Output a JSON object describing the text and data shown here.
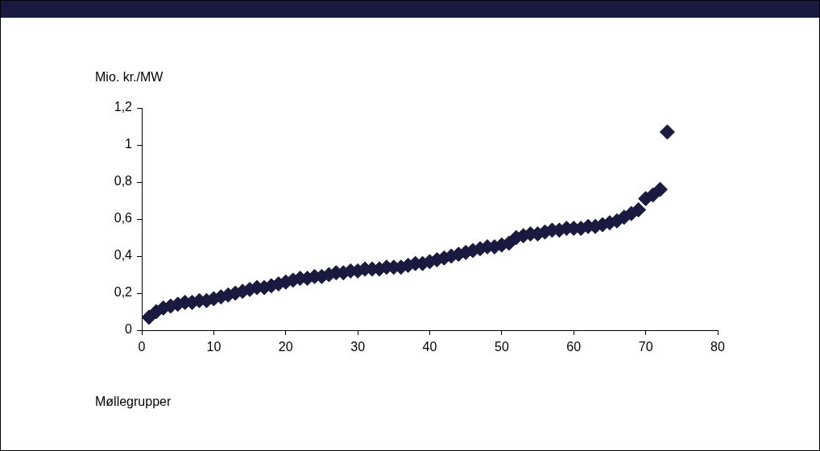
{
  "chart_data": {
    "type": "scatter",
    "xlabel": "Møllegrupper",
    "ylabel": "Mio. kr./MW",
    "x": [
      1,
      2,
      3,
      4,
      5,
      6,
      7,
      8,
      9,
      10,
      11,
      12,
      13,
      14,
      15,
      16,
      17,
      18,
      19,
      20,
      21,
      22,
      23,
      24,
      25,
      26,
      27,
      28,
      29,
      30,
      31,
      32,
      33,
      34,
      35,
      36,
      37,
      38,
      39,
      40,
      41,
      42,
      43,
      44,
      45,
      46,
      47,
      48,
      49,
      50,
      51,
      52,
      53,
      54,
      55,
      56,
      57,
      58,
      59,
      60,
      61,
      62,
      63,
      64,
      65,
      66,
      67,
      68,
      69,
      70,
      71,
      72,
      73
    ],
    "series": [
      {
        "color": "#1a1a40",
        "values": [
          0.07,
          0.1,
          0.12,
          0.13,
          0.14,
          0.15,
          0.15,
          0.16,
          0.16,
          0.17,
          0.18,
          0.19,
          0.2,
          0.21,
          0.22,
          0.23,
          0.23,
          0.24,
          0.25,
          0.26,
          0.27,
          0.28,
          0.28,
          0.29,
          0.29,
          0.3,
          0.31,
          0.31,
          0.32,
          0.32,
          0.33,
          0.33,
          0.33,
          0.34,
          0.34,
          0.34,
          0.35,
          0.36,
          0.36,
          0.37,
          0.38,
          0.39,
          0.4,
          0.41,
          0.42,
          0.43,
          0.44,
          0.45,
          0.45,
          0.46,
          0.47,
          0.5,
          0.51,
          0.52,
          0.52,
          0.53,
          0.54,
          0.54,
          0.55,
          0.55,
          0.55,
          0.56,
          0.56,
          0.57,
          0.58,
          0.59,
          0.61,
          0.63,
          0.65,
          0.71,
          0.73,
          0.76,
          1.07
        ]
      }
    ],
    "xlim": [
      0,
      80
    ],
    "xticks": [
      0,
      10,
      20,
      30,
      40,
      50,
      60,
      70,
      80
    ],
    "ylim": [
      0,
      1.2
    ],
    "yticks": [
      0,
      {
        "value": 0.2,
        "label": "0,2"
      },
      {
        "value": 0.4,
        "label": "0,4"
      },
      {
        "value": 0.6,
        "label": "0,6"
      },
      {
        "value": 0.8,
        "label": "0,8"
      },
      1,
      {
        "value": 1.2,
        "label": "1,2"
      }
    ],
    "marker": "diamond"
  }
}
